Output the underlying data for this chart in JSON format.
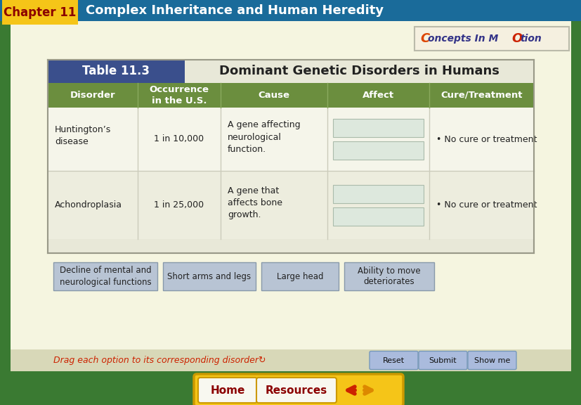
{
  "title_chapter": "Chapter 11",
  "title_main": "Complex Inheritance and Human Heredity",
  "table_title_label": "Table 11.3",
  "table_title_text": "Dominant Genetic Disorders in Humans",
  "header_bg": "#6b8e3e",
  "header_text_color": "#ffffff",
  "table_label_bg": "#3a4f8c",
  "table_label_text": "#ffffff",
  "table_outer_bg": "#e8e8d8",
  "body_bg_light": "#f5f5ea",
  "affect_box_color": "#dde8dd",
  "drag_box_color": "#b8c4d4",
  "drag_box_border": "#8899aa",
  "chapter_header_bg": "#1a6b9a",
  "chapter_box_bg": "#f5c518",
  "chapter_box_text": "#8b0000",
  "page_bg": "#3a7a32",
  "content_bg": "#f5f5e0",
  "bottom_bar_bg": "#d8d8b8",
  "col_headers": [
    "Disorder",
    "Occurrence\nin the U.S.",
    "Cause",
    "Affect",
    "Cure/Treatment"
  ],
  "row1_disorder": "Huntington’s\ndisease",
  "row1_occurrence": "1 in 10,000",
  "row1_cause": "A gene affecting\nneurological\nfunction.",
  "row1_cure": "• No cure or treatment",
  "row2_disorder": "Achondroplasia",
  "row2_occurrence": "1 in 25,000",
  "row2_cause": "A gene that\naffects bone\ngrowth.",
  "row2_cure": "• No cure or treatment",
  "drag_options": [
    "Decline of mental and\nneurological functions",
    "Short arms and legs",
    "Large head",
    "Ability to move\ndeteriorates"
  ],
  "drag_instruction": "Drag each option to its corresponding disorder↻",
  "button_labels": [
    "Reset",
    "Submit",
    "Show me"
  ],
  "button_bg": "#aabbdd",
  "button_border": "#7799bb",
  "home_text": "Home",
  "resources_text": "Resources",
  "home_resources_bg": "#f5c518",
  "home_border": "#cc9900",
  "arrow_left_color": "#cc2200",
  "arrow_right_color": "#dd8800",
  "logo_text_color": "#333388",
  "logo_c_color": "#dd4400",
  "logo_o_color": "#cc2200"
}
